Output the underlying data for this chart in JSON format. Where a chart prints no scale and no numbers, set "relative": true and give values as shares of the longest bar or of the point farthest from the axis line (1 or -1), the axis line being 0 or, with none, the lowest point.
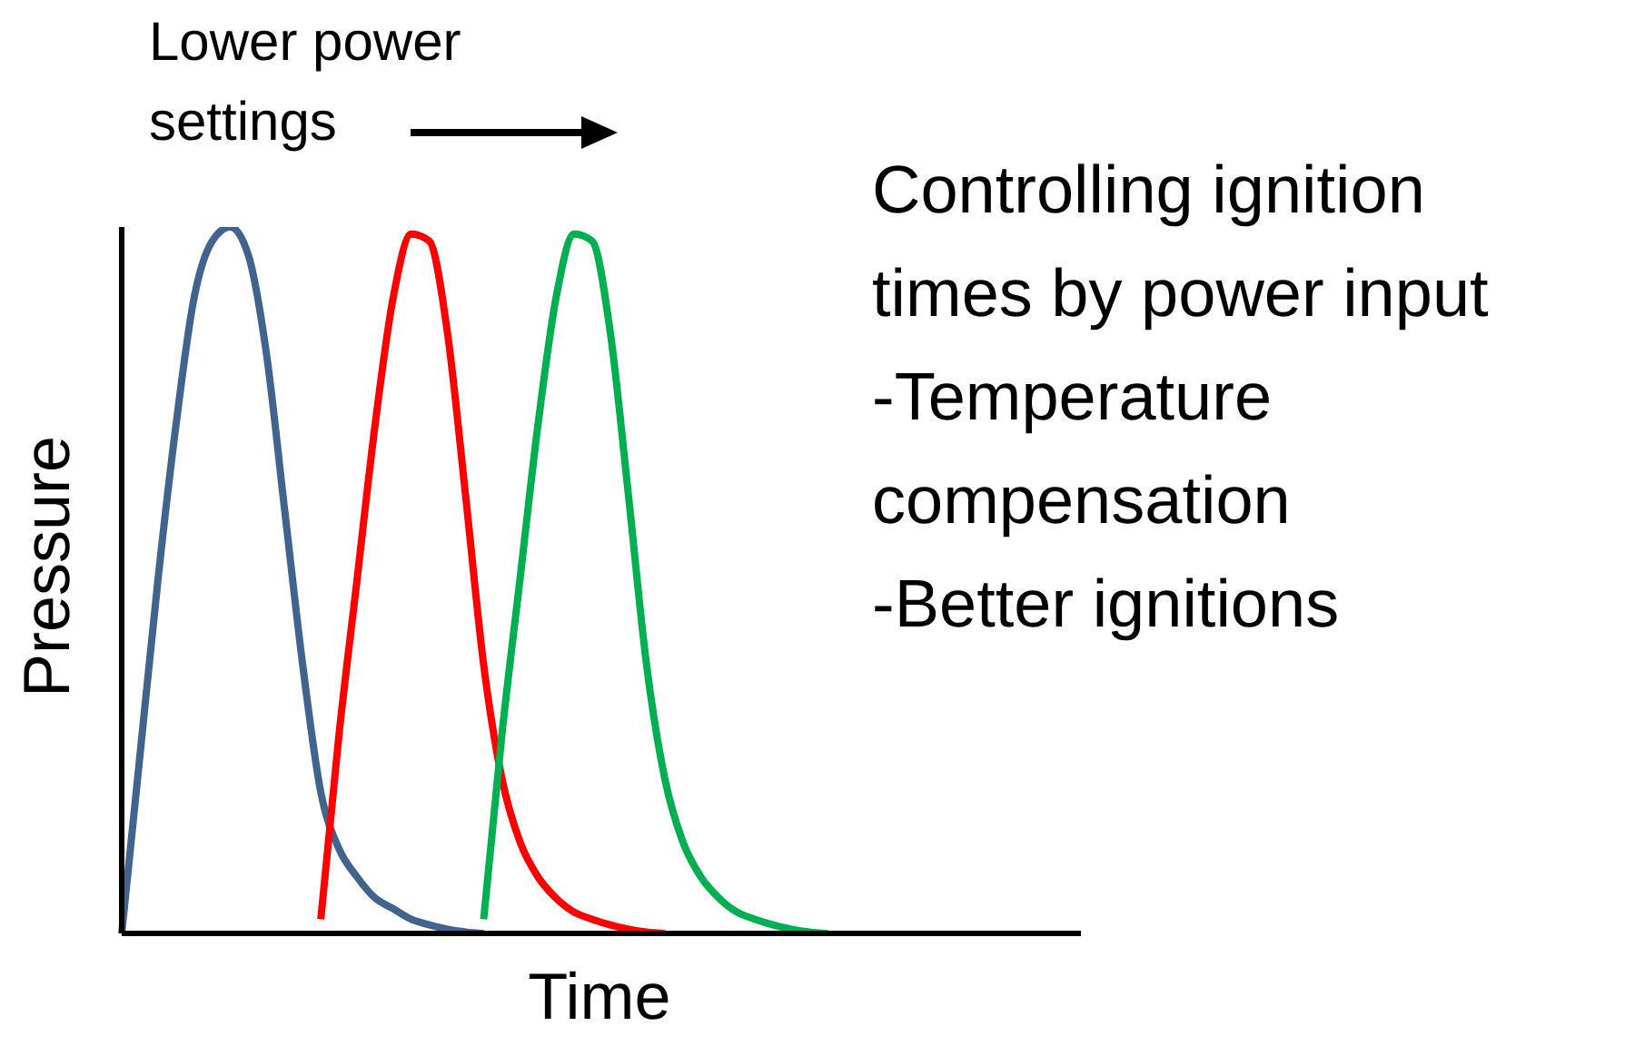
{
  "chart_data": {
    "type": "line",
    "relative": true,
    "xlabel": "Time",
    "ylabel": "Pressure",
    "categories": [
      null,
      null,
      null,
      null,
      null,
      null,
      null,
      null,
      null,
      null,
      null,
      null,
      null,
      null,
      null,
      null,
      null,
      null,
      null,
      null,
      null,
      null,
      null,
      null,
      null,
      null,
      null,
      null,
      null,
      null,
      null,
      null,
      null,
      null,
      null,
      null,
      null,
      null,
      null,
      null,
      null,
      null,
      null,
      null,
      null,
      null,
      null,
      null,
      null,
      null,
      null,
      null,
      null,
      null
    ],
    "series": [
      {
        "color": "#41648f",
        "values": [
          0,
          0.25,
          0.5,
          0.72,
          0.9,
          0.98,
          1,
          0.96,
          0.82,
          0.6,
          0.38,
          0.2,
          0.12,
          0.08,
          0.05,
          0.035,
          0.02,
          0.012,
          0.006,
          0.002,
          0,
          null,
          null,
          null,
          null,
          null,
          null,
          null,
          null,
          null,
          null,
          null,
          null,
          null,
          null,
          null,
          null,
          null,
          null,
          null,
          null,
          null,
          null,
          null,
          null,
          null,
          null,
          null,
          null,
          null,
          null,
          null,
          null,
          null
        ]
      },
      {
        "color": "#ff0000",
        "values": [
          null,
          null,
          null,
          null,
          null,
          null,
          null,
          null,
          null,
          null,
          null,
          0.02,
          0.28,
          0.5,
          0.72,
          0.9,
          0.99,
          0.98,
          0.85,
          0.62,
          0.38,
          0.22,
          0.13,
          0.08,
          0.05,
          0.03,
          0.02,
          0.012,
          0.006,
          0.002,
          0,
          null,
          null,
          null,
          null,
          null,
          null,
          null,
          null,
          null,
          null,
          null,
          null,
          null,
          null,
          null,
          null,
          null,
          null,
          null,
          null,
          null,
          null,
          null
        ]
      },
      {
        "color": "#00b050",
        "values": [
          null,
          null,
          null,
          null,
          null,
          null,
          null,
          null,
          null,
          null,
          null,
          null,
          null,
          null,
          null,
          null,
          null,
          null,
          null,
          null,
          0.02,
          0.28,
          0.5,
          0.72,
          0.9,
          0.99,
          0.98,
          0.85,
          0.62,
          0.38,
          0.22,
          0.13,
          0.08,
          0.05,
          0.03,
          0.02,
          0.012,
          0.006,
          0.002,
          0,
          null,
          null,
          null,
          null,
          null,
          null,
          null,
          null,
          null,
          null,
          null,
          null,
          null,
          null
        ]
      }
    ],
    "annotations": [
      "Lower power settings",
      "Controlling ignition times by power input",
      "-Temperature compensation",
      "-Better ignitions"
    ]
  }
}
